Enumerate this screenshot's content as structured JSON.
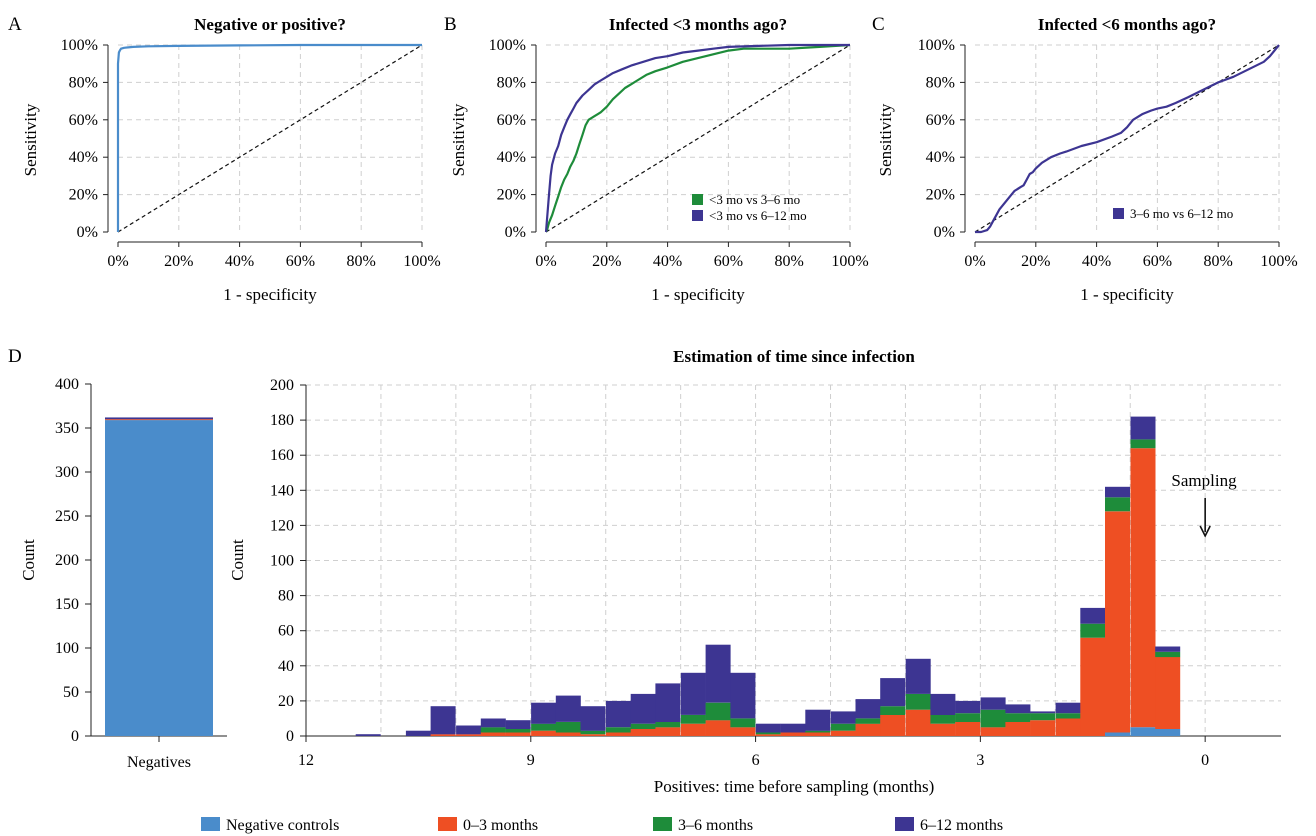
{
  "chart_data": [
    {
      "panel_label": "A",
      "type": "line",
      "title": "Negative or positive?",
      "xlabel": "1 - specificity",
      "ylabel": "Sensitivity",
      "xlim": [
        0,
        100
      ],
      "ylim": [
        0,
        100
      ],
      "xticks": [
        "0%",
        "20%",
        "40%",
        "60%",
        "80%",
        "100%"
      ],
      "yticks": [
        "0%",
        "20%",
        "40%",
        "60%",
        "80%",
        "100%"
      ],
      "grid": true,
      "reference_diagonal": true,
      "series": [
        {
          "color": "#4a8ccb",
          "x": [
            0,
            0,
            0.3,
            0.6,
            1,
            2,
            5,
            10,
            20,
            40,
            60,
            80,
            100
          ],
          "y": [
            0,
            90,
            96,
            97,
            98,
            98.5,
            99,
            99.3,
            99.5,
            99.8,
            100,
            100,
            100
          ]
        }
      ]
    },
    {
      "panel_label": "B",
      "type": "line",
      "title": "Infected <3 months ago?",
      "xlabel": "1 - specificity",
      "ylabel": "Sensitivity",
      "xlim": [
        0,
        100
      ],
      "ylim": [
        0,
        100
      ],
      "xticks": [
        "0%",
        "20%",
        "40%",
        "60%",
        "80%",
        "100%"
      ],
      "yticks": [
        "0%",
        "20%",
        "40%",
        "60%",
        "80%",
        "100%"
      ],
      "grid": true,
      "reference_diagonal": true,
      "legend_position": "bottom-right",
      "series": [
        {
          "name": "<3 mo vs 3–6 mo",
          "color": "#1e8c3a",
          "x": [
            0,
            0.5,
            1,
            2,
            3,
            4,
            5,
            6,
            7,
            8,
            9,
            10,
            11,
            12,
            13,
            14,
            15,
            16,
            17,
            18,
            20,
            22,
            24,
            26,
            28,
            30,
            33,
            36,
            40,
            45,
            50,
            55,
            60,
            65,
            70,
            80,
            90,
            100
          ],
          "y": [
            0,
            2,
            5,
            9,
            14,
            19,
            24,
            28,
            31,
            35,
            38,
            42,
            47,
            52,
            57,
            60,
            61,
            62,
            63,
            64,
            67,
            71,
            74,
            77,
            79,
            81,
            84,
            86,
            88,
            91,
            93,
            95,
            97,
            98,
            98,
            98,
            99,
            100
          ]
        },
        {
          "name": "<3 mo vs 6–12 mo",
          "color": "#3d3592",
          "x": [
            0,
            0.5,
            1,
            1.5,
            2,
            3,
            4,
            5,
            6,
            7,
            8,
            9,
            10,
            12,
            14,
            16,
            18,
            20,
            22,
            25,
            28,
            32,
            36,
            40,
            45,
            50,
            55,
            60,
            70,
            80,
            90,
            100
          ],
          "y": [
            0,
            10,
            20,
            30,
            36,
            42,
            46,
            52,
            56,
            60,
            63,
            66,
            69,
            73,
            76,
            79,
            81,
            83,
            85,
            87,
            89,
            91,
            93,
            94,
            96,
            97,
            98,
            99,
            99.5,
            100,
            100,
            100
          ]
        }
      ]
    },
    {
      "panel_label": "C",
      "type": "line",
      "title": "Infected <6 months ago?",
      "xlabel": "1 - specificity",
      "ylabel": "Sensitivity",
      "xlim": [
        0,
        100
      ],
      "ylim": [
        0,
        100
      ],
      "xticks": [
        "0%",
        "20%",
        "40%",
        "60%",
        "80%",
        "100%"
      ],
      "yticks": [
        "0%",
        "20%",
        "40%",
        "60%",
        "80%",
        "100%"
      ],
      "grid": true,
      "reference_diagonal": true,
      "legend_position": "bottom-right",
      "series": [
        {
          "name": "3–6 mo vs 6–12 mo",
          "color": "#3d3592",
          "x": [
            0,
            2,
            4,
            5,
            6,
            7,
            8,
            10,
            12,
            13,
            14,
            15,
            16,
            17,
            18,
            19,
            20,
            22,
            25,
            28,
            30,
            35,
            40,
            45,
            48,
            50,
            52,
            55,
            58,
            60,
            63,
            66,
            70,
            75,
            80,
            85,
            90,
            95,
            97,
            100
          ],
          "y": [
            0,
            0,
            1,
            3,
            6,
            9,
            12,
            16,
            20,
            22,
            23,
            24,
            25,
            28,
            31,
            32,
            34,
            37,
            40,
            42,
            43,
            46,
            48,
            51,
            53,
            56,
            60,
            63,
            65,
            66,
            67,
            69,
            72,
            76,
            80,
            83,
            87,
            91,
            94,
            100
          ]
        }
      ]
    },
    {
      "panel_label": "D",
      "type": "bar",
      "title": "",
      "xlabel": "",
      "ylabel": "Count",
      "ylim": [
        0,
        400
      ],
      "yticks": [
        "0",
        "50",
        "100",
        "150",
        "200",
        "250",
        "300",
        "350",
        "400"
      ],
      "categories": [
        "Negatives"
      ],
      "series": [
        {
          "name": "Negative controls",
          "color": "#4a8ccb",
          "values": [
            359
          ]
        },
        {
          "name": "0–3 months",
          "color": "#ee4f23",
          "values": [
            1
          ]
        },
        {
          "name": "3–6 months",
          "color": "#1e8c3a",
          "values": [
            0
          ]
        },
        {
          "name": "6–12 months",
          "color": "#3d3592",
          "values": [
            2
          ]
        }
      ]
    },
    {
      "type": "bar",
      "stacked": true,
      "title": "Estimation of time since infection",
      "xlabel": "Positives: time before sampling (months)",
      "ylabel": "Count",
      "xlim": [
        12,
        -1
      ],
      "ylim": [
        0,
        200
      ],
      "xticks": [
        "12",
        "9",
        "6",
        "3",
        "0"
      ],
      "yticks": [
        "0",
        "20",
        "40",
        "60",
        "80",
        "100",
        "120",
        "140",
        "160",
        "180",
        "200"
      ],
      "grid": true,
      "annotation": "Sampling",
      "bin_width_months": 0.333,
      "x": [
        11.17,
        10.83,
        10.5,
        10.17,
        9.83,
        9.5,
        9.17,
        8.83,
        8.5,
        8.17,
        7.83,
        7.5,
        7.17,
        6.83,
        6.5,
        6.17,
        5.83,
        5.5,
        5.17,
        4.83,
        4.5,
        4.17,
        3.83,
        3.5,
        3.17,
        2.83,
        2.5,
        2.17,
        1.83,
        1.5,
        1.17,
        0.83,
        0.5
      ],
      "series": [
        {
          "name": "Negative controls",
          "color": "#4a8ccb",
          "values": [
            0,
            0,
            0,
            0,
            0,
            0,
            0,
            0,
            0,
            0,
            0,
            0,
            0,
            0,
            0,
            0,
            0,
            0,
            0,
            0,
            0,
            0,
            0,
            0,
            0,
            0,
            0,
            0,
            0,
            0,
            2,
            5,
            4
          ]
        },
        {
          "name": "0–3 months",
          "color": "#ee4f23",
          "values": [
            0,
            0,
            0,
            1,
            1,
            2,
            2,
            3,
            2,
            1,
            2,
            4,
            5,
            7,
            9,
            5,
            1,
            2,
            2,
            3,
            7,
            12,
            15,
            7,
            8,
            5,
            8,
            9,
            10,
            56,
            126,
            159,
            41
          ]
        },
        {
          "name": "3–6 months",
          "color": "#1e8c3a",
          "values": [
            0,
            0,
            0,
            0,
            0,
            3,
            2,
            4,
            6,
            2,
            3,
            3,
            3,
            5,
            10,
            5,
            1,
            0,
            1,
            4,
            3,
            5,
            9,
            5,
            5,
            10,
            5,
            4,
            3,
            8,
            8,
            5,
            3
          ]
        },
        {
          "name": "6–12 months",
          "color": "#3d3592",
          "values": [
            1,
            0,
            3,
            16,
            5,
            5,
            5,
            12,
            15,
            14,
            15,
            17,
            22,
            24,
            33,
            26,
            5,
            5,
            12,
            7,
            11,
            16,
            20,
            12,
            7,
            7,
            5,
            1,
            6,
            9,
            6,
            13,
            3
          ]
        }
      ]
    }
  ],
  "legend": [
    {
      "label": "Negative controls",
      "color": "#4a8ccb"
    },
    {
      "label": "0–3 months",
      "color": "#ee4f23"
    },
    {
      "label": "3–6 months",
      "color": "#1e8c3a"
    },
    {
      "label": "6–12 months",
      "color": "#3d3592"
    }
  ]
}
